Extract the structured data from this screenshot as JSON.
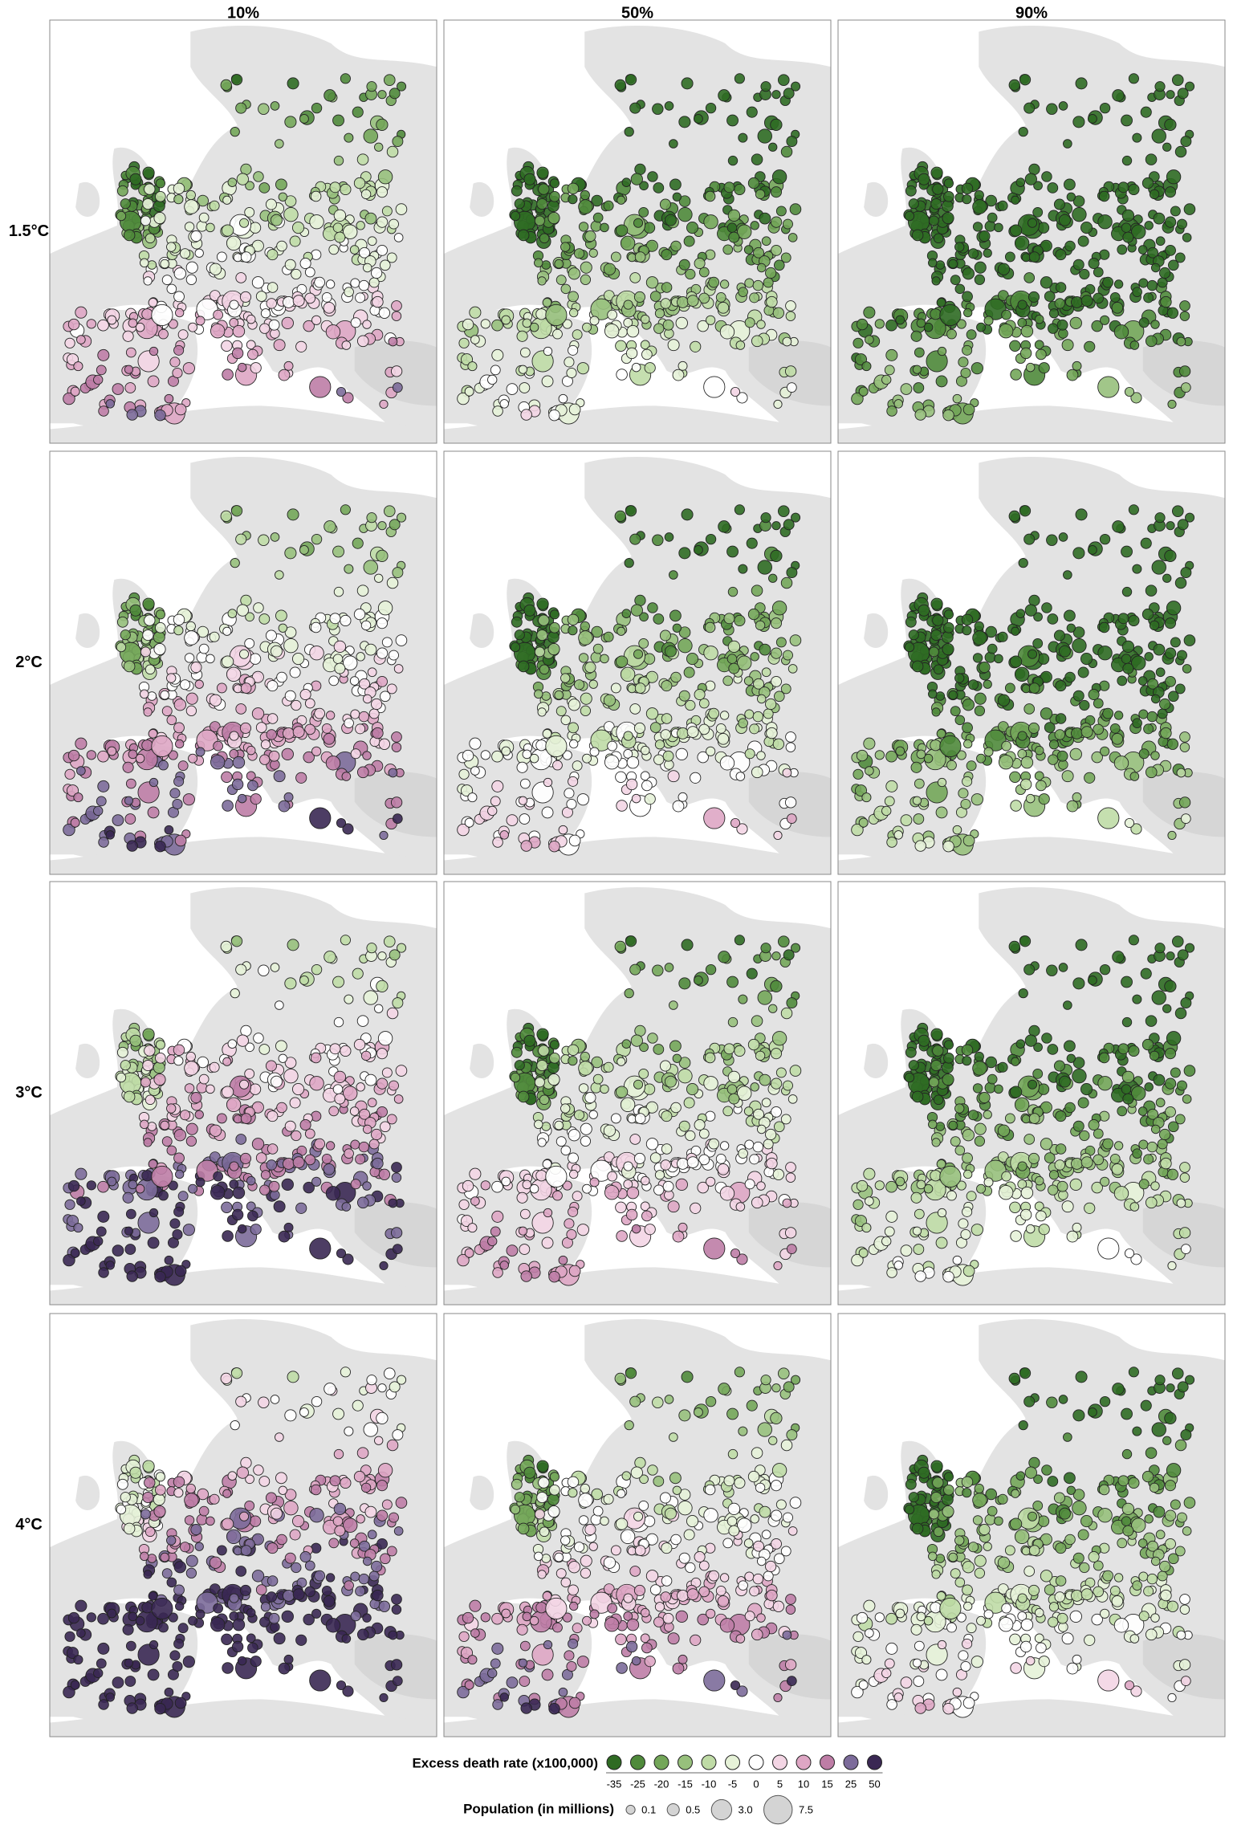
{
  "columns": [
    "10%",
    "50%",
    "90%"
  ],
  "rows": [
    "1.5°C",
    "2°C",
    "3°C",
    "4°C"
  ],
  "legend": {
    "title": "Excess death rate (x100,000)",
    "breaks": [
      -35,
      -25,
      -20,
      -15,
      -10,
      -5,
      0,
      5,
      10,
      15,
      25,
      50
    ],
    "colors": [
      "#2f6b23",
      "#4f8a3b",
      "#73a659",
      "#97c07c",
      "#bfdba6",
      "#e6f2d8",
      "#ffffff",
      "#f3d5e4",
      "#dea6c4",
      "#be7da6",
      "#7c6b9a",
      "#3a2853"
    ]
  },
  "population_legend": {
    "title": "Population (in millions)",
    "values": [
      0.1,
      0.5,
      {
        "value": 3,
        "label": "3.0"
      },
      7.5
    ]
  }
}
